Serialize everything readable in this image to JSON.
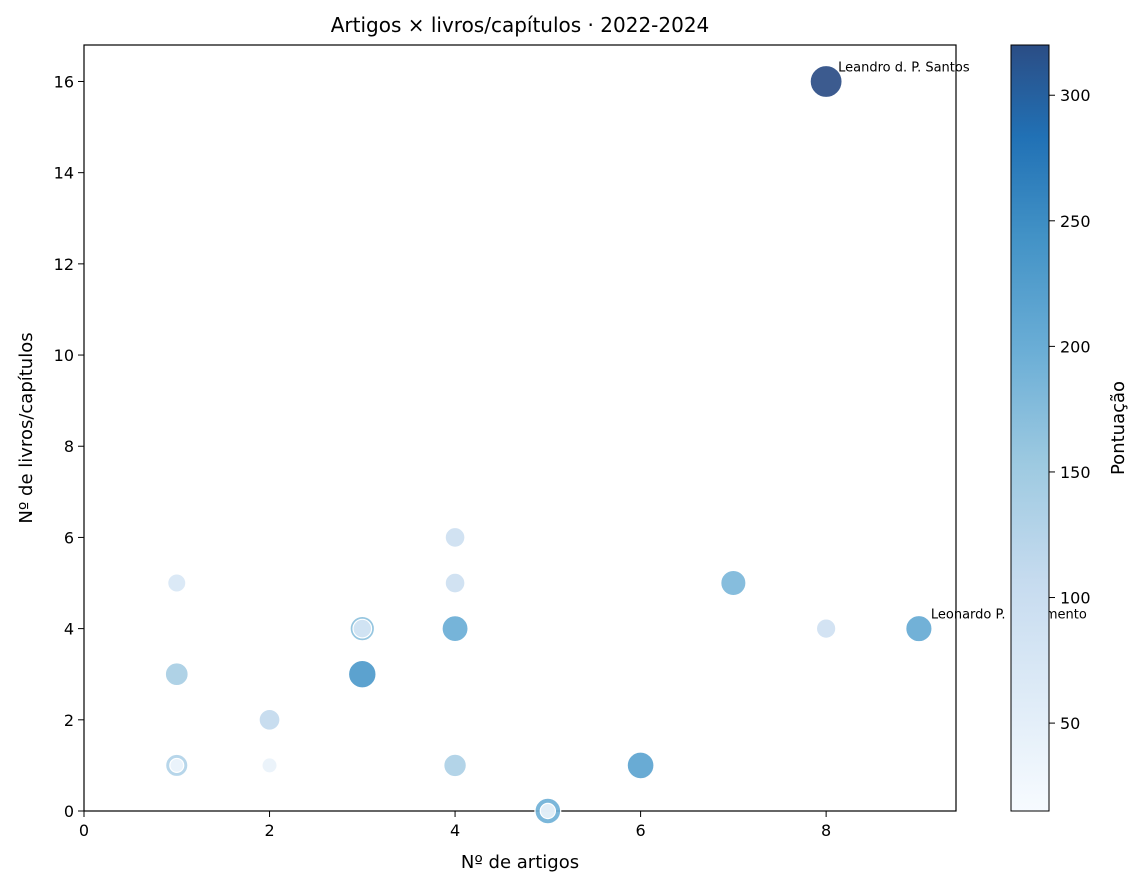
{
  "chart_data": {
    "type": "scatter",
    "title": "Artigos × livros/capítulos · 2022-2024",
    "xlabel": "Nº de artigos",
    "ylabel": "Nº de livros/capítulos",
    "xlim": [
      0,
      9.4
    ],
    "ylim": [
      0,
      16.8
    ],
    "xticks": [
      0,
      2,
      4,
      6,
      8
    ],
    "yticks": [
      0,
      2,
      4,
      6,
      8,
      10,
      12,
      14,
      16
    ],
    "grid": false,
    "colorbar": {
      "label": "Pontuação",
      "range": [
        15,
        320
      ],
      "ticks": [
        50,
        100,
        150,
        200,
        250,
        300
      ],
      "colors": [
        "#f7fbff",
        "#deebf7",
        "#c6dbef",
        "#9ecae1",
        "#6baed6",
        "#4292c6",
        "#2171b5",
        "#2b4d85"
      ]
    },
    "points": [
      {
        "x": 8,
        "y": 16,
        "score": 320
      },
      {
        "x": 9,
        "y": 4,
        "score": 195
      },
      {
        "x": 7,
        "y": 5,
        "score": 175
      },
      {
        "x": 8,
        "y": 4,
        "score": 85
      },
      {
        "x": 6,
        "y": 1,
        "score": 205
      },
      {
        "x": 5,
        "y": 0,
        "score": 185
      },
      {
        "x": 5,
        "y": 0,
        "score": 40
      },
      {
        "x": 4,
        "y": 6,
        "score": 90
      },
      {
        "x": 4,
        "y": 5,
        "score": 90
      },
      {
        "x": 4,
        "y": 4,
        "score": 190
      },
      {
        "x": 4,
        "y": 1,
        "score": 130
      },
      {
        "x": 3,
        "y": 4,
        "score": 160
      },
      {
        "x": 3,
        "y": 4,
        "score": 75
      },
      {
        "x": 3,
        "y": 3,
        "score": 220
      },
      {
        "x": 2,
        "y": 2,
        "score": 105
      },
      {
        "x": 2,
        "y": 1,
        "score": 40
      },
      {
        "x": 1,
        "y": 5,
        "score": 70
      },
      {
        "x": 1,
        "y": 3,
        "score": 135
      },
      {
        "x": 1,
        "y": 1,
        "score": 125
      },
      {
        "x": 1,
        "y": 1,
        "score": 30
      }
    ],
    "annotations": [
      {
        "text": "Leandro d. P. Santos",
        "x": 8,
        "y": 16
      },
      {
        "text": "Leonardo P. Nascimento",
        "x": 9,
        "y": 4
      }
    ]
  }
}
